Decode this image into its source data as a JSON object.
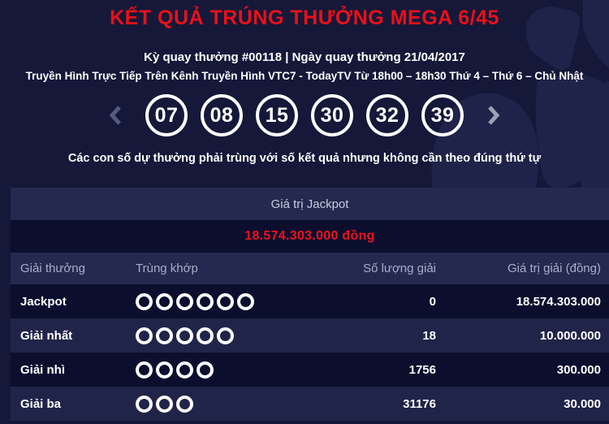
{
  "colors": {
    "background": "#151839",
    "decoration_facet": "#1f2349",
    "title_red": "#ea1019",
    "jackpot_red": "#f2111c",
    "bar_background": "#252950",
    "row_dark": "#0c0e2e",
    "row_light": "#212449",
    "circle_white": "#ffffff",
    "header_text": "#a9adc8"
  },
  "header": {
    "title": "KẾT QUẢ TRÚNG THƯỞNG MEGA 6/45",
    "draw_info": "Kỳ quay thưởng #00118 | Ngày quay thưởng 21/04/2017",
    "broadcast_info": "Truyền Hình Trực Tiếp Trên Kênh Truyền Hình VTC7 - TodayTV Từ 18h00 – 18h30 Thứ 4 – Thứ 6 – Chủ Nhật"
  },
  "results": {
    "numbers": [
      "07",
      "08",
      "15",
      "30",
      "32",
      "39"
    ],
    "icons": {
      "prev_arrow": "chevron-left",
      "next_arrow": "chevron-right"
    },
    "note": "Các con số dự thưởng phải trùng với số kết quả nhưng không cần theo đúng thứ tự"
  },
  "jackpot": {
    "section_title": "Giá trị Jackpot",
    "value": "18.574.303.000 đồng"
  },
  "prize_table": {
    "columns": [
      "Giải thưởng",
      "Trùng khớp",
      "Số lượng giải",
      "Giá trị giải (đồng)"
    ],
    "rows": [
      {
        "label": "Jackpot",
        "match_count": 6,
        "winners": "0",
        "prize": "18.574.303.000"
      },
      {
        "label": "Giải nhất",
        "match_count": 5,
        "winners": "18",
        "prize": "10.000.000"
      },
      {
        "label": "Giải nhì",
        "match_count": 4,
        "winners": "1756",
        "prize": "300.000"
      },
      {
        "label": "Giải ba",
        "match_count": 3,
        "winners": "31176",
        "prize": "30.000"
      }
    ]
  }
}
